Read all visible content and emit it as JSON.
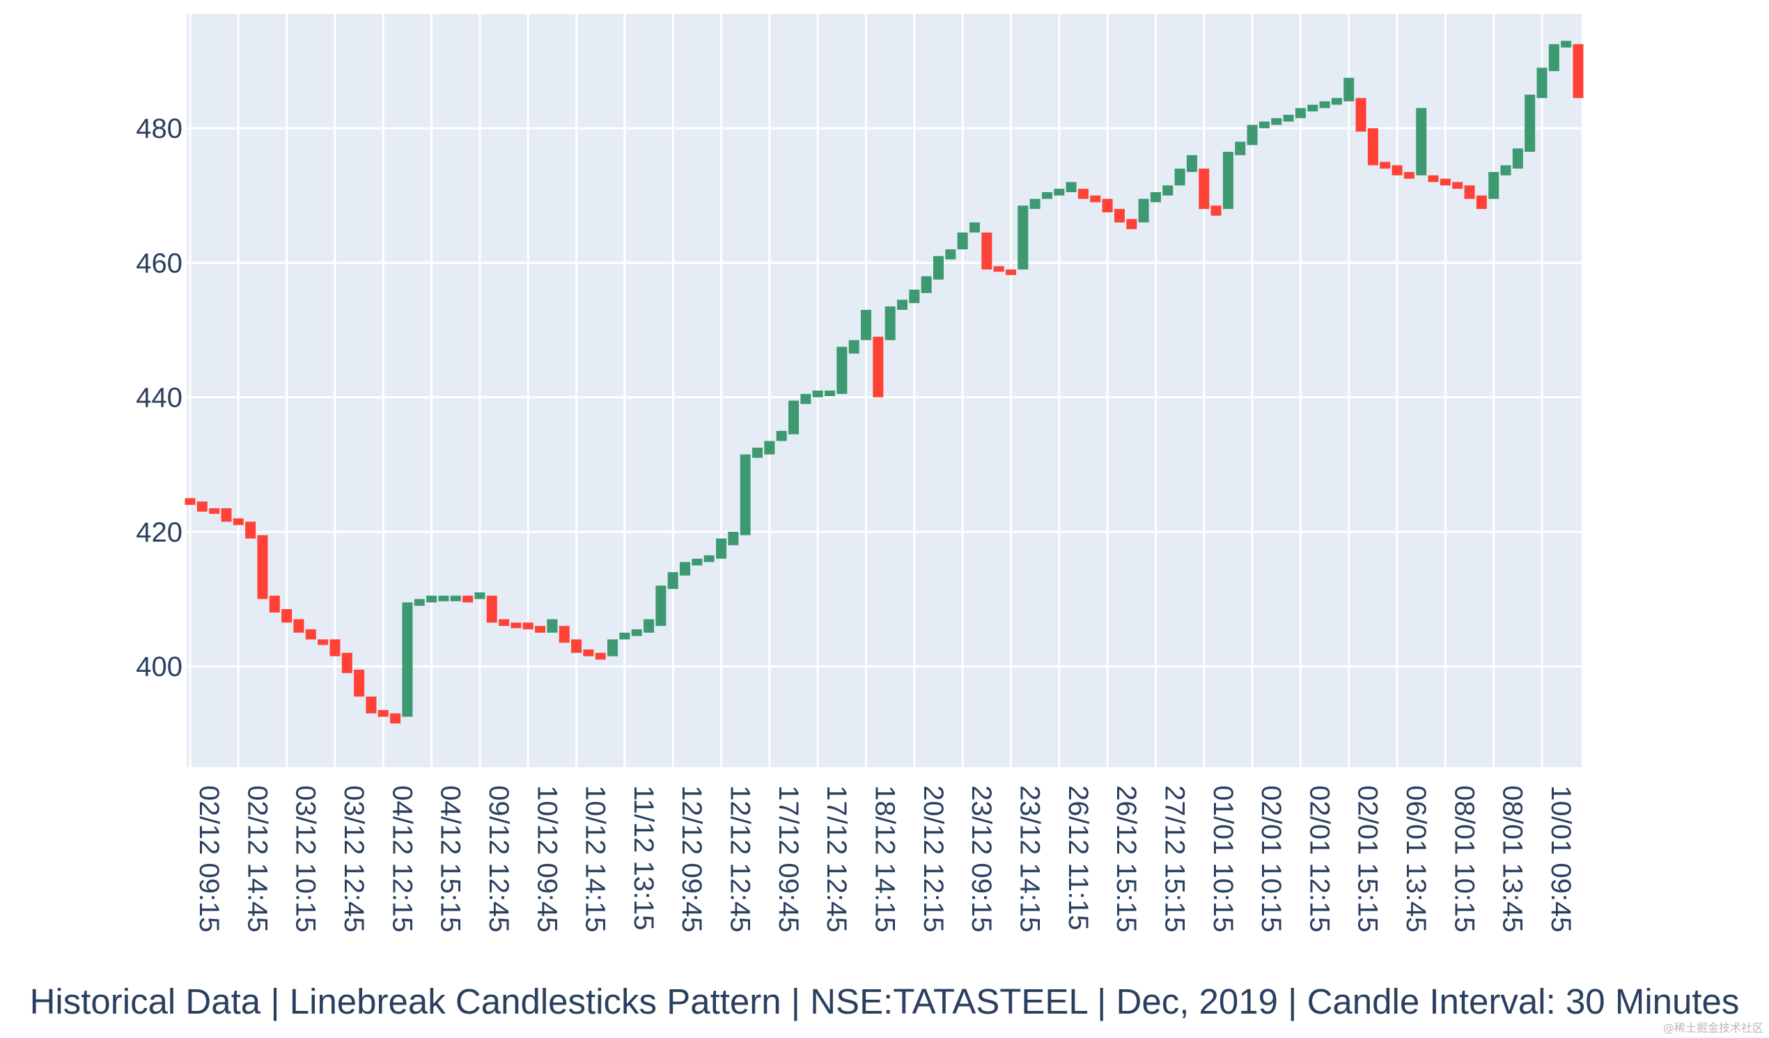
{
  "chart_data": {
    "type": "candlestick",
    "style": "linebreak",
    "title": "Historical Data | Linebreak Candlesticks Pattern | NSE:TATASTEEL | Dec, 2019 | Candle Interval: 30 Minutes",
    "ylim": [
      385,
      497
    ],
    "yticks": [
      400,
      420,
      440,
      460,
      480
    ],
    "xtick_labels": [
      "02/12 09:15",
      "02/12 14:45",
      "03/12 10:15",
      "03/12 12:45",
      "04/12 12:15",
      "04/12 15:15",
      "09/12 12:45",
      "10/12 09:45",
      "10/12 14:15",
      "11/12 13:15",
      "12/12 09:45",
      "12/12 12:45",
      "17/12 09:45",
      "17/12 12:45",
      "18/12 14:15",
      "20/12 12:15",
      "23/12 09:15",
      "23/12 14:15",
      "26/12 11:15",
      "26/12 15:15",
      "27/12 15:15",
      "01/01 10:15",
      "02/01 10:15",
      "02/01 12:15",
      "02/01 15:15",
      "06/01 13:45",
      "08/01 10:15",
      "08/01 13:45",
      "10/01 09:45"
    ],
    "colors": {
      "up": "#3d9970",
      "down": "#ff4136",
      "plot_bg": "#e5ecf6",
      "grid": "#ffffff"
    },
    "bricks": [
      {
        "open": 425.0,
        "close": 424.0
      },
      {
        "open": 424.5,
        "close": 423.0
      },
      {
        "open": 423.5,
        "close": 423.0
      },
      {
        "open": 423.5,
        "close": 421.5
      },
      {
        "open": 422.0,
        "close": 421.0
      },
      {
        "open": 421.5,
        "close": 419.0
      },
      {
        "open": 419.5,
        "close": 410.0
      },
      {
        "open": 410.5,
        "close": 408.0
      },
      {
        "open": 408.5,
        "close": 406.5
      },
      {
        "open": 407.0,
        "close": 405.0
      },
      {
        "open": 405.5,
        "close": 404.0
      },
      {
        "open": 404.0,
        "close": 403.5
      },
      {
        "open": 404.0,
        "close": 401.5
      },
      {
        "open": 402.0,
        "close": 399.0
      },
      {
        "open": 399.5,
        "close": 395.5
      },
      {
        "open": 395.5,
        "close": 393.0
      },
      {
        "open": 393.5,
        "close": 392.5
      },
      {
        "open": 393.0,
        "close": 391.5
      },
      {
        "open": 392.5,
        "close": 409.5
      },
      {
        "open": 409.0,
        "close": 410.0
      },
      {
        "open": 409.5,
        "close": 410.5
      },
      {
        "open": 410.0,
        "close": 410.5
      },
      {
        "open": 410.0,
        "close": 410.5
      },
      {
        "open": 410.5,
        "close": 409.5
      },
      {
        "open": 410.0,
        "close": 411.0
      },
      {
        "open": 410.5,
        "close": 406.5
      },
      {
        "open": 407.0,
        "close": 406.0
      },
      {
        "open": 406.5,
        "close": 406.0
      },
      {
        "open": 406.5,
        "close": 405.5
      },
      {
        "open": 406.0,
        "close": 405.0
      },
      {
        "open": 405.0,
        "close": 407.0
      },
      {
        "open": 406.0,
        "close": 403.5
      },
      {
        "open": 404.0,
        "close": 402.0
      },
      {
        "open": 402.5,
        "close": 401.5
      },
      {
        "open": 402.0,
        "close": 401.0
      },
      {
        "open": 401.5,
        "close": 404.0
      },
      {
        "open": 404.0,
        "close": 405.0
      },
      {
        "open": 404.5,
        "close": 405.5
      },
      {
        "open": 405.0,
        "close": 407.0
      },
      {
        "open": 406.0,
        "close": 412.0
      },
      {
        "open": 411.5,
        "close": 414.0
      },
      {
        "open": 413.5,
        "close": 415.5
      },
      {
        "open": 415.0,
        "close": 416.0
      },
      {
        "open": 415.5,
        "close": 416.5
      },
      {
        "open": 416.0,
        "close": 419.0
      },
      {
        "open": 418.0,
        "close": 420.0
      },
      {
        "open": 419.5,
        "close": 431.5
      },
      {
        "open": 431.0,
        "close": 432.5
      },
      {
        "open": 431.5,
        "close": 433.5
      },
      {
        "open": 433.5,
        "close": 435.0
      },
      {
        "open": 434.5,
        "close": 439.5
      },
      {
        "open": 439.0,
        "close": 440.5
      },
      {
        "open": 440.0,
        "close": 441.0
      },
      {
        "open": 440.5,
        "close": 441.0
      },
      {
        "open": 440.5,
        "close": 447.5
      },
      {
        "open": 446.5,
        "close": 448.5
      },
      {
        "open": 448.5,
        "close": 453.0
      },
      {
        "open": 449.0,
        "close": 440.0
      },
      {
        "open": 448.5,
        "close": 453.5
      },
      {
        "open": 453.0,
        "close": 454.5
      },
      {
        "open": 454.0,
        "close": 456.0
      },
      {
        "open": 455.5,
        "close": 458.0
      },
      {
        "open": 457.5,
        "close": 461.0
      },
      {
        "open": 460.5,
        "close": 462.0
      },
      {
        "open": 462.0,
        "close": 464.5
      },
      {
        "open": 464.5,
        "close": 466.0
      },
      {
        "open": 464.5,
        "close": 459.0
      },
      {
        "open": 459.5,
        "close": 459.0
      },
      {
        "open": 459.0,
        "close": 458.5
      },
      {
        "open": 459.0,
        "close": 468.5
      },
      {
        "open": 468.0,
        "close": 469.5
      },
      {
        "open": 469.5,
        "close": 470.5
      },
      {
        "open": 470.0,
        "close": 471.0
      },
      {
        "open": 470.5,
        "close": 472.0
      },
      {
        "open": 471.0,
        "close": 469.5
      },
      {
        "open": 470.0,
        "close": 469.0
      },
      {
        "open": 469.5,
        "close": 467.5
      },
      {
        "open": 468.0,
        "close": 466.0
      },
      {
        "open": 466.5,
        "close": 465.0
      },
      {
        "open": 466.0,
        "close": 469.5
      },
      {
        "open": 469.0,
        "close": 470.5
      },
      {
        "open": 470.0,
        "close": 471.5
      },
      {
        "open": 471.5,
        "close": 474.0
      },
      {
        "open": 473.5,
        "close": 476.0
      },
      {
        "open": 474.0,
        "close": 468.0
      },
      {
        "open": 468.5,
        "close": 467.0
      },
      {
        "open": 468.0,
        "close": 476.5
      },
      {
        "open": 476.0,
        "close": 478.0
      },
      {
        "open": 477.5,
        "close": 480.5
      },
      {
        "open": 480.0,
        "close": 481.0
      },
      {
        "open": 480.5,
        "close": 481.5
      },
      {
        "open": 481.0,
        "close": 482.0
      },
      {
        "open": 481.5,
        "close": 483.0
      },
      {
        "open": 482.5,
        "close": 483.5
      },
      {
        "open": 483.0,
        "close": 484.0
      },
      {
        "open": 483.5,
        "close": 484.5
      },
      {
        "open": 484.0,
        "close": 487.5
      },
      {
        "open": 484.5,
        "close": 479.5
      },
      {
        "open": 480.0,
        "close": 474.5
      },
      {
        "open": 475.0,
        "close": 474.0
      },
      {
        "open": 474.5,
        "close": 473.0
      },
      {
        "open": 473.5,
        "close": 472.5
      },
      {
        "open": 473.0,
        "close": 483.0
      },
      {
        "open": 473.0,
        "close": 472.0
      },
      {
        "open": 472.5,
        "close": 471.5
      },
      {
        "open": 472.0,
        "close": 471.0
      },
      {
        "open": 471.5,
        "close": 469.5
      },
      {
        "open": 470.0,
        "close": 468.0
      },
      {
        "open": 469.5,
        "close": 473.5
      },
      {
        "open": 473.0,
        "close": 474.5
      },
      {
        "open": 474.0,
        "close": 477.0
      },
      {
        "open": 476.5,
        "close": 485.0
      },
      {
        "open": 484.5,
        "close": 489.0
      },
      {
        "open": 488.5,
        "close": 492.5
      },
      {
        "open": 492.0,
        "close": 493.0
      },
      {
        "open": 492.5,
        "close": 484.5
      }
    ]
  }
}
